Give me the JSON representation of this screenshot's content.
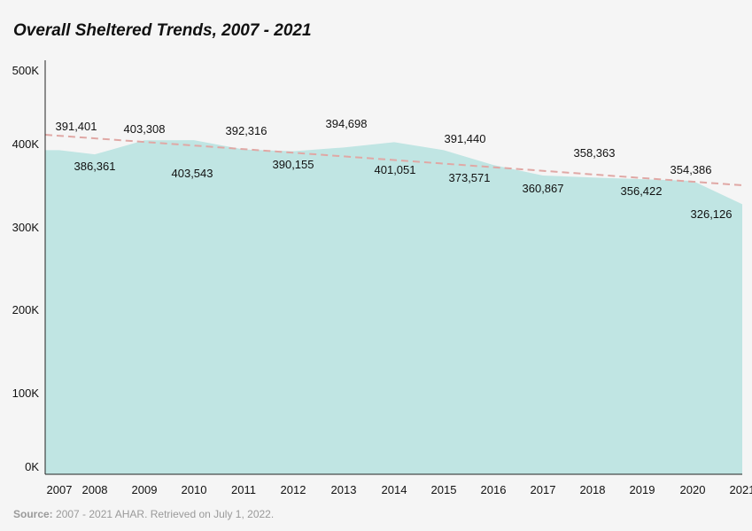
{
  "chart_data": {
    "type": "area",
    "title": "Overall Sheltered Trends, 2007 - 2021",
    "xlabel": "",
    "ylabel": "",
    "categories": [
      "2007",
      "2008",
      "2009",
      "2010",
      "2011",
      "2012",
      "2013",
      "2014",
      "2015",
      "2016",
      "2017",
      "2018",
      "2019",
      "2020",
      "2021"
    ],
    "series": [
      {
        "values": [
          391401,
          386361,
          403308,
          403543,
          392316,
          390155,
          394698,
          401051,
          391440,
          373571,
          360867,
          358363,
          356422,
          354386,
          326126
        ],
        "color": "#c0e5e3",
        "data_labels": [
          "391,401",
          "386,361",
          "403,308",
          "403,543",
          "392,316",
          "390,155",
          "394,698",
          "401,051",
          "391,440",
          "373,571",
          "360,867",
          "358,363",
          "356,422",
          "354,386",
          "326,126"
        ]
      }
    ],
    "trendline": {
      "type": "linear",
      "color": "#e0a8a5",
      "style": "dashed"
    },
    "ylim": [
      0,
      500000
    ],
    "yticks": [
      0,
      100000,
      200000,
      300000,
      400000,
      500000
    ],
    "ytick_labels": [
      "0K",
      "100K",
      "200K",
      "300K",
      "400K",
      "500K"
    ],
    "grid": false
  },
  "source": {
    "label": "Source:",
    "text": " 2007 - 2021 AHAR. Retrieved on July 1, 2022."
  }
}
